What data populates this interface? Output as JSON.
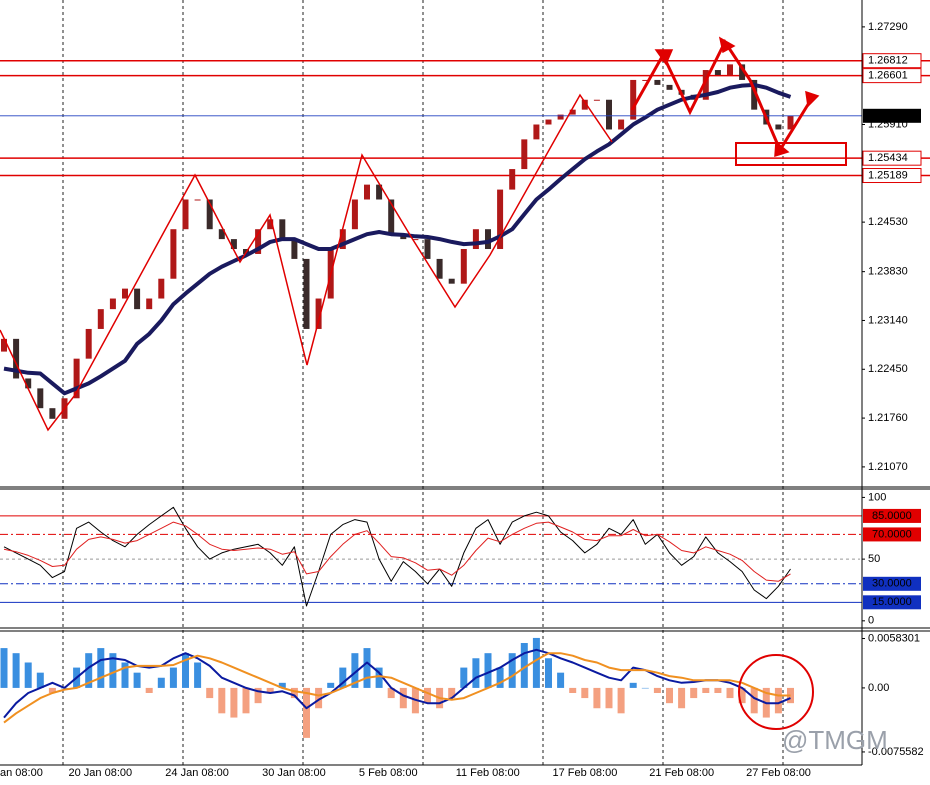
{
  "watermark": "@TMGM",
  "chart_data": [
    {
      "type": "candlestick",
      "ylim": [
        1.208,
        1.2767
      ],
      "yticks": [
        {
          "value": 1.2729,
          "label": "1.27290"
        },
        {
          "value": 1.2591,
          "label": "1.25910"
        },
        {
          "value": 1.2453,
          "label": "1.24530"
        },
        {
          "value": 1.2383,
          "label": "1.23830"
        },
        {
          "value": 1.2314,
          "label": "1.23140"
        },
        {
          "value": 1.2245,
          "label": "1.22450"
        },
        {
          "value": 1.2176,
          "label": "1.21760"
        },
        {
          "value": 1.2107,
          "label": "1.21070"
        }
      ],
      "up_color": "#b01818",
      "down_color": "#3a2a2a",
      "open": [
        1.227,
        1.2288,
        1.2232,
        1.2218,
        1.219,
        1.2175,
        1.2204,
        1.226,
        1.2302,
        1.233,
        1.2345,
        1.2359,
        1.233,
        1.2345,
        1.2373,
        1.2443,
        1.2485,
        1.2485,
        1.2443,
        1.2429,
        1.2415,
        1.2408,
        1.2443,
        1.2457,
        1.2429,
        1.2401,
        1.2302,
        1.2345,
        1.2415,
        1.2443,
        1.2485,
        1.2506,
        1.2485,
        1.2436,
        1.2429,
        1.2429,
        1.2401,
        1.2373,
        1.2366,
        1.2415,
        1.2443,
        1.2415,
        1.2499,
        1.2528,
        1.257,
        1.2591,
        1.2598,
        1.2605,
        1.2612,
        1.2626,
        1.2626,
        1.2584,
        1.2598,
        1.2654,
        1.2654,
        1.2647,
        1.264,
        1.2633,
        1.2626,
        1.2668,
        1.2661,
        1.2676,
        1.2654,
        1.2612,
        1.2591,
        1.2584
      ],
      "close": [
        1.2288,
        1.2232,
        1.2218,
        1.219,
        1.2175,
        1.2204,
        1.226,
        1.2302,
        1.233,
        1.2345,
        1.2359,
        1.233,
        1.2345,
        1.2373,
        1.2443,
        1.2485,
        1.2485,
        1.2443,
        1.2429,
        1.2415,
        1.2408,
        1.2443,
        1.2457,
        1.2429,
        1.2401,
        1.2302,
        1.2345,
        1.2415,
        1.2443,
        1.2485,
        1.2506,
        1.2485,
        1.2436,
        1.2429,
        1.2429,
        1.2401,
        1.2373,
        1.2366,
        1.2415,
        1.2443,
        1.2415,
        1.2499,
        1.2528,
        1.257,
        1.2591,
        1.2598,
        1.2605,
        1.2612,
        1.2626,
        1.2626,
        1.2584,
        1.2598,
        1.2654,
        1.2654,
        1.2647,
        1.264,
        1.2633,
        1.2626,
        1.2668,
        1.2661,
        1.2676,
        1.2654,
        1.2612,
        1.2591,
        1.2584,
        1.2603
      ],
      "series": [
        {
          "color": "#1a1a5e",
          "values": [
            1.2246,
            1.2243,
            1.224,
            1.2239,
            1.2225,
            1.2211,
            1.2218,
            1.2225,
            1.2235,
            1.2246,
            1.2257,
            1.2281,
            1.2295,
            1.2314,
            1.2337,
            1.2352,
            1.2366,
            1.238,
            1.239,
            1.2398,
            1.2406,
            1.2415,
            1.2425,
            1.2429,
            1.2429,
            1.2422,
            1.2415,
            1.2415,
            1.2422,
            1.2429,
            1.2436,
            1.2439,
            1.2436,
            1.2435,
            1.2433,
            1.2432,
            1.2429,
            1.2425,
            1.2422,
            1.2423,
            1.2425,
            1.2433,
            1.2443,
            1.2464,
            1.2485,
            1.2499,
            1.2514,
            1.2528,
            1.2542,
            1.2553,
            1.2563,
            1.2577,
            1.2591,
            1.2601,
            1.2612,
            1.2619,
            1.2626,
            1.263,
            1.2633,
            1.2637,
            1.2643,
            1.2646,
            1.2647,
            1.2643,
            1.2636,
            1.263
          ]
        }
      ],
      "levels": [
        {
          "value": 1.26812,
          "color": "#e00000"
        },
        {
          "value": 1.26601,
          "color": "#e00000"
        },
        {
          "value": 1.25434,
          "color": "#e00000"
        },
        {
          "value": 1.25189,
          "color": "#e00000"
        }
      ],
      "current": {
        "value": 1.26033,
        "color": "#2040c0"
      }
    },
    {
      "type": "line",
      "ylim": [
        -5,
        106
      ],
      "yticks": [
        0,
        50,
        100
      ],
      "series": [
        {
          "color": "#000000",
          "values": [
            60,
            55,
            50,
            45,
            35,
            40,
            75,
            80,
            72,
            65,
            60,
            70,
            78,
            85,
            92,
            75,
            60,
            50,
            55,
            58,
            60,
            62,
            55,
            45,
            60,
            12,
            40,
            70,
            78,
            82,
            80,
            50,
            32,
            48,
            40,
            30,
            42,
            28,
            55,
            75,
            82,
            62,
            80,
            85,
            88,
            85,
            72,
            65,
            55,
            62,
            75,
            70,
            82,
            62,
            70,
            55,
            45,
            52,
            68,
            55,
            48,
            40,
            25,
            18,
            28,
            42
          ]
        },
        {
          "color": "#e02020",
          "values": [
            58,
            56,
            53,
            49,
            44,
            45,
            58,
            66,
            68,
            66,
            63,
            65,
            70,
            75,
            80,
            77,
            70,
            62,
            58,
            57,
            58,
            59,
            58,
            54,
            56,
            38,
            40,
            52,
            62,
            70,
            73,
            63,
            52,
            51,
            47,
            41,
            42,
            37,
            45,
            57,
            67,
            64,
            70,
            75,
            79,
            80,
            76,
            72,
            66,
            65,
            69,
            69,
            74,
            69,
            70,
            64,
            57,
            55,
            60,
            57,
            54,
            49,
            40,
            33,
            32,
            38
          ]
        }
      ],
      "levels": [
        {
          "value": 85,
          "label": "85.0000",
          "color": "#e00000",
          "style": "solid"
        },
        {
          "value": 70,
          "label": "70.0000",
          "color": "#e00000",
          "style": "dashdot"
        },
        {
          "value": 30,
          "label": "30.0000",
          "color": "#1030c0",
          "style": "dashdot"
        },
        {
          "value": 15,
          "label": "15.0000",
          "color": "#1030c0",
          "style": "solid"
        }
      ]
    },
    {
      "type": "bar",
      "ylim": [
        -0.0091,
        0.0066
      ],
      "yticks": [
        0.0058301,
        {
          "value": 0,
          "label": "0.00"
        },
        -0.0075582
      ],
      "positive_color": "#3a8fe0",
      "negative_color": "#f4a080",
      "categories": [
        "an 08:00",
        null,
        null,
        null,
        null,
        "20 Jan 08:00",
        null,
        null,
        null,
        null,
        null,
        null,
        null,
        "24 Jan 08:00",
        null,
        null,
        null,
        null,
        null,
        null,
        null,
        "30 Jan 08:00",
        null,
        null,
        null,
        null,
        null,
        null,
        null,
        "5 Feb 08:00",
        null,
        null,
        null,
        null,
        null,
        null,
        null,
        "11 Feb 08:00",
        null,
        null,
        null,
        null,
        null,
        null,
        null,
        "17 Feb 08:00",
        null,
        null,
        null,
        null,
        null,
        null,
        null,
        "21 Feb 08:00",
        null,
        null,
        null,
        null,
        null,
        null,
        null,
        "27 Feb 08:00",
        null,
        null,
        null,
        null
      ],
      "values": [
        0.0047,
        0.0041,
        0.003,
        0.0018,
        -0.0006,
        0,
        0.0024,
        0.0041,
        0.0047,
        0.0041,
        0.003,
        0.0018,
        -0.0006,
        0.0012,
        0.0024,
        0.0041,
        0.003,
        -0.0012,
        -0.003,
        -0.0035,
        -0.003,
        -0.0018,
        -0.0006,
        0.0006,
        -0.0012,
        -0.0059,
        -0.0024,
        0.0006,
        0.0024,
        0.0041,
        0.0047,
        0.0024,
        -0.0012,
        -0.0024,
        -0.003,
        -0.0018,
        -0.0024,
        -0.0012,
        0.0024,
        0.0035,
        0.0041,
        0.0024,
        0.0041,
        0.0053,
        0.0059,
        0.0035,
        0.0018,
        -0.0006,
        -0.0012,
        -0.0024,
        -0.0024,
        -0.003,
        0.0006,
        0,
        -0.0006,
        -0.0018,
        -0.0024,
        -0.0012,
        -0.0006,
        -0.0006,
        -0.0012,
        -0.0018,
        -0.003,
        -0.0035,
        -0.003,
        -0.0018
      ],
      "series": [
        {
          "color": "#0a1aa0",
          "values": [
            -0.0035,
            -0.0018,
            -0.0006,
            0,
            0.0006,
            0,
            0.0012,
            0.0024,
            0.0033,
            0.0035,
            0.0033,
            0.0026,
            0.0024,
            0.0026,
            0.0035,
            0.0041,
            0.0035,
            0.0026,
            0.0012,
            0.0006,
            0,
            -0.0004,
            -0.0006,
            -0.0004,
            -0.0009,
            -0.0024,
            -0.0014,
            -0.0006,
            0.0006,
            0.0018,
            0.003,
            0.0018,
            0,
            -0.0009,
            -0.0014,
            -0.0018,
            -0.0018,
            -0.0012,
            0,
            0.0012,
            0.0018,
            0.0024,
            0.0033,
            0.0041,
            0.0045,
            0.0041,
            0.0035,
            0.003,
            0.0024,
            0.0018,
            0.0012,
            0.0009,
            0.0024,
            0.0021,
            0.0014,
            0.0009,
            0.0006,
            0.0007,
            0.0009,
            0.0009,
            0.0006,
            0,
            -0.0012,
            -0.0018,
            -0.0018,
            -0.0012
          ]
        },
        {
          "color": "#f09020",
          "values": [
            -0.0041,
            -0.003,
            -0.0021,
            -0.0012,
            -0.0006,
            -0.0002,
            0,
            0.0006,
            0.0012,
            0.0018,
            0.0024,
            0.0026,
            0.0026,
            0.0026,
            0.0027,
            0.0033,
            0.0038,
            0.0035,
            0.003,
            0.0024,
            0.0018,
            0.0012,
            0.0006,
            0,
            -0.0004,
            -0.0006,
            -0.0009,
            -0.0006,
            0,
            0.0006,
            0.0012,
            0.0014,
            0.0012,
            0.0006,
            0,
            -0.0006,
            -0.0012,
            -0.0014,
            -0.0012,
            -0.0006,
            0,
            0.0006,
            0.0014,
            0.0024,
            0.0033,
            0.0041,
            0.0041,
            0.0038,
            0.0033,
            0.003,
            0.0024,
            0.0021,
            0.0021,
            0.0021,
            0.0018,
            0.0014,
            0.0012,
            0.0009,
            0.0009,
            0.0009,
            0.0009,
            0.0006,
            0,
            -0.0006,
            -0.0009,
            -0.0009
          ]
        }
      ]
    }
  ]
}
